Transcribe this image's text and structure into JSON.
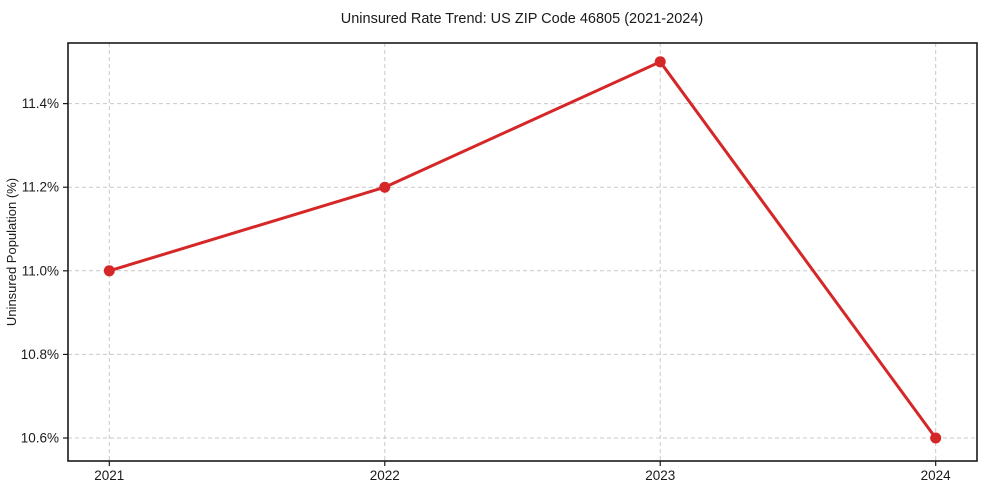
{
  "chart_data": {
    "type": "line",
    "title": "Uninsured Rate Trend: US ZIP Code 46805 (2021-2024)",
    "xlabel": "",
    "ylabel": "Uninsured Population (%)",
    "x": [
      2021,
      2022,
      2023,
      2024
    ],
    "y": [
      11.0,
      11.2,
      11.5,
      10.6
    ],
    "x_tick_labels": [
      "2021",
      "2022",
      "2023",
      "2024"
    ],
    "y_ticks": [
      10.6,
      10.8,
      11.0,
      11.2,
      11.4
    ],
    "y_tick_labels": [
      "10.6%",
      "10.8%",
      "11.0%",
      "11.2%",
      "11.4%"
    ],
    "xlim": [
      2020.85,
      2024.15
    ],
    "ylim": [
      10.545,
      11.545
    ],
    "grid": true,
    "grid_style": "dashed",
    "legend": false,
    "line_color": "#d62728",
    "marker": "circle",
    "marker_color": "#d62728",
    "line_width": 3,
    "marker_radius": 5.5,
    "grid_color": "#c9c9c9",
    "axis_color": "#1a1a1a",
    "background_color": "#ffffff"
  }
}
